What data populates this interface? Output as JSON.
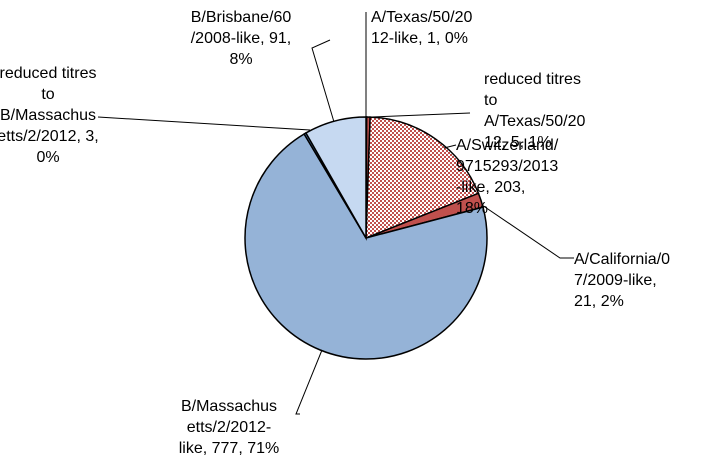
{
  "chart_data": {
    "type": "pie",
    "title": "",
    "legend": "none",
    "slices": [
      {
        "label": [
          "A/Texas/50/20",
          "12-like, 1, 0%"
        ],
        "value": 1,
        "percent": "0%",
        "fill": "#ffffff",
        "pattern": false
      },
      {
        "label": [
          "reduced titres",
          "to",
          "A/Texas/50/20",
          "12, 5, 1%"
        ],
        "value": 5,
        "percent": "1%",
        "fill": "#c0504d",
        "pattern": false
      },
      {
        "label": [
          "A/Switzerland/",
          "9715293/2013",
          "-like, 203,",
          "18%"
        ],
        "value": 203,
        "percent": "18%",
        "fill": "#e6b9b8",
        "pattern": true
      },
      {
        "label": [
          "A/California/0",
          "7/2009-like,",
          "21, 2%"
        ],
        "value": 21,
        "percent": "2%",
        "fill": "#c0504d",
        "pattern": false
      },
      {
        "label": [
          "B/Massachus",
          "etts/2/2012-",
          "like, 777, 71%"
        ],
        "value": 777,
        "percent": "71%",
        "fill": "#95b3d7",
        "pattern": false
      },
      {
        "label": [
          "reduced titres",
          "to",
          "B/Massachus",
          "etts/2/2012, 3,",
          "0%"
        ],
        "value": 3,
        "percent": "0%",
        "fill": "#4f81bd",
        "pattern": false
      },
      {
        "label": [
          "B/Brisbane/60",
          "/2008-like, 91,",
          "8%"
        ],
        "value": 91,
        "percent": "8%",
        "fill": "#c6d9f1",
        "pattern": false
      }
    ]
  }
}
